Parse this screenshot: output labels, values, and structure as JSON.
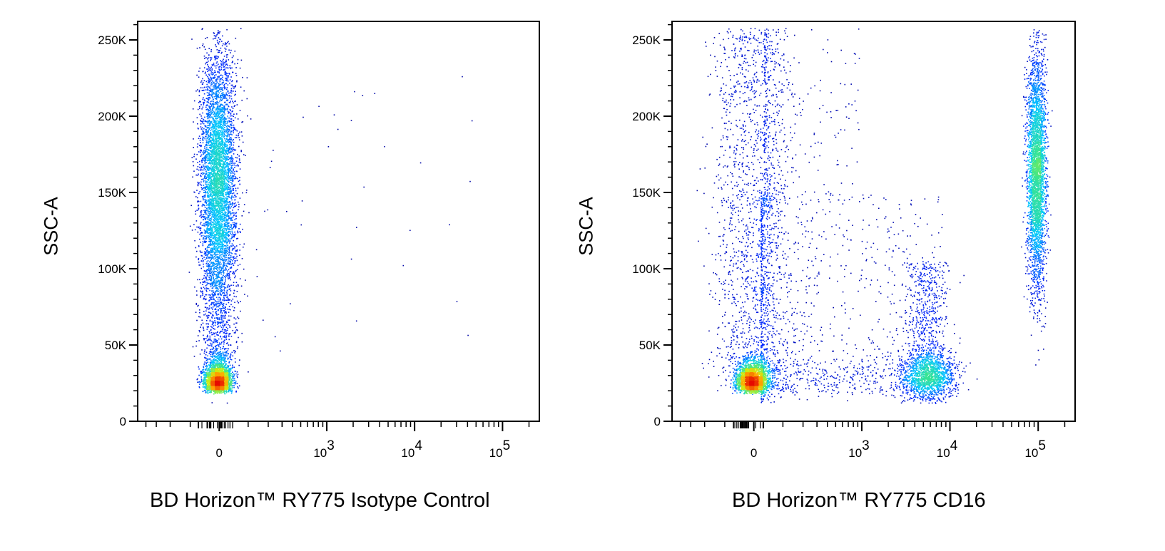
{
  "chart_data": [
    {
      "type": "scatter",
      "style": "density pseudocolor dot plot",
      "xlabel": "BD Horizon™ RY775 Isotype Control",
      "ylabel": "SSC-A",
      "x_scale": "biexponential (logicle)",
      "xticks": [
        "0",
        "10^3",
        "10^4",
        "10^5"
      ],
      "yticks": [
        "0",
        "50K",
        "100K",
        "150K",
        "200K",
        "250K"
      ],
      "ylim": [
        0,
        262144
      ],
      "populations": [
        {
          "name": "",
          "x_center": 0,
          "x_spread": 80,
          "y_center": 28000,
          "y_spread": 9000,
          "density": "very high"
        },
        {
          "name": "",
          "x_center": 0,
          "x_spread": 90,
          "y_center": 160000,
          "y_spread": 45000,
          "density": "high"
        },
        {
          "name": "",
          "x_center": 1000,
          "x_spread": "wide",
          "y_center": 110000,
          "y_spread": "wide",
          "density": "very sparse"
        }
      ]
    },
    {
      "type": "scatter",
      "style": "density pseudocolor dot plot",
      "xlabel": "BD Horizon™ RY775 CD16",
      "ylabel": "SSC-A",
      "x_scale": "biexponential (logicle)",
      "xticks": [
        "0",
        "10^3",
        "10^4",
        "10^5"
      ],
      "yticks": [
        "0",
        "50K",
        "100K",
        "150K",
        "200K",
        "250K"
      ],
      "ylim": [
        0,
        262144
      ],
      "populations": [
        {
          "name": "",
          "x_center": 0,
          "x_spread": 80,
          "y_center": 28000,
          "y_spread": 9000,
          "density": "very high"
        },
        {
          "name": "",
          "x_center": 6000,
          "x_spread": "moderate",
          "y_center": 30000,
          "y_spread": 9000,
          "density": "high"
        },
        {
          "name": "",
          "x_center": 100000,
          "x_spread": "narrow",
          "y_center": 165000,
          "y_spread": 40000,
          "density": "high"
        },
        {
          "name": "",
          "x_center": 300,
          "x_spread": "wide",
          "y_center": 90000,
          "y_spread": "wide",
          "density": "sparse"
        }
      ]
    }
  ]
}
